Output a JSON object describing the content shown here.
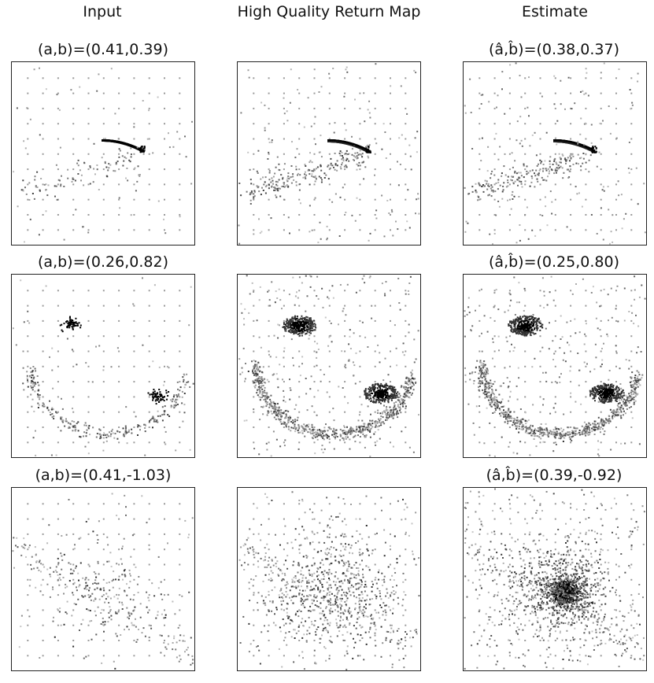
{
  "column_titles": [
    "Input",
    "High Quality Return Map",
    "Estimate"
  ],
  "rows": [
    {
      "titles": [
        "(a,b)=(0.41,0.39)",
        "",
        "(â,b̂)=(0.38,0.37)"
      ]
    },
    {
      "titles": [
        "(a,b)=(0.26,0.82)",
        "",
        "(â,b̂)=(0.25,0.80)"
      ]
    },
    {
      "titles": [
        "(a,b)=(0.41,-1.03)",
        "",
        "(â,b̂)=(0.39,-0.92)"
      ]
    }
  ],
  "chart_data": {
    "type": "heatmap",
    "description_free": true,
    "panels": [
      {
        "row": 0,
        "col": 0,
        "a": 0.41,
        "b": 0.39,
        "pattern": "arc",
        "density": "sparse"
      },
      {
        "row": 0,
        "col": 1,
        "pattern": "arc",
        "density": "medium"
      },
      {
        "row": 0,
        "col": 2,
        "a_hat": 0.38,
        "b_hat": 0.37,
        "pattern": "arc",
        "density": "medium"
      },
      {
        "row": 1,
        "col": 0,
        "a": 0.26,
        "b": 0.82,
        "pattern": "two-cluster",
        "density": "sparse"
      },
      {
        "row": 1,
        "col": 1,
        "pattern": "two-cluster",
        "density": "dense"
      },
      {
        "row": 1,
        "col": 2,
        "a_hat": 0.25,
        "b_hat": 0.8,
        "pattern": "two-cluster",
        "density": "dense"
      },
      {
        "row": 2,
        "col": 0,
        "a": 0.41,
        "b": -1.03,
        "pattern": "diffuse",
        "density": "sparse"
      },
      {
        "row": 2,
        "col": 1,
        "pattern": "diffuse",
        "density": "medium"
      },
      {
        "row": 2,
        "col": 2,
        "a_hat": 0.39,
        "b_hat": -0.92,
        "pattern": "central-blob",
        "density": "dense"
      }
    ],
    "grid": true,
    "colormap": "greys"
  }
}
